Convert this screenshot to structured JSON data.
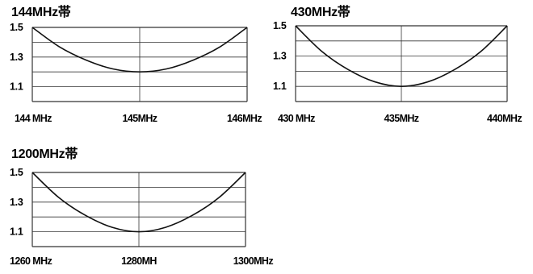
{
  "chart_data": [
    {
      "type": "line",
      "title": "144MHz帯",
      "xlabel": "",
      "ylabel": "",
      "x": [
        144,
        144.25,
        144.5,
        144.75,
        145,
        145.25,
        145.5,
        145.75,
        146
      ],
      "x_tick_labels": [
        "144 MHz",
        "145MHz",
        "146MHz"
      ],
      "y": [
        1.5,
        1.37,
        1.28,
        1.22,
        1.2,
        1.22,
        1.28,
        1.37,
        1.5
      ],
      "y_ticks": [
        "1.5",
        "1.3",
        "1.1"
      ],
      "ylim": [
        1.0,
        1.5
      ],
      "xlim": [
        144,
        146
      ],
      "grid": true,
      "color": "#111111"
    },
    {
      "type": "line",
      "title": "430MHz帯",
      "xlabel": "",
      "ylabel": "",
      "x": [
        430,
        431.25,
        432.5,
        433.75,
        435,
        436.25,
        437.5,
        438.75,
        440
      ],
      "x_tick_labels": [
        "430 MHz",
        "435MHz",
        "440MHz"
      ],
      "y": [
        1.5,
        1.33,
        1.21,
        1.13,
        1.1,
        1.13,
        1.21,
        1.33,
        1.5
      ],
      "y_ticks": [
        "1.5",
        "1.3",
        "1.1"
      ],
      "ylim": [
        1.0,
        1.5
      ],
      "xlim": [
        430,
        440
      ],
      "grid": true,
      "color": "#111111"
    },
    {
      "type": "line",
      "title": "1200MHz帯",
      "xlabel": "",
      "ylabel": "",
      "x": [
        1260,
        1265,
        1270,
        1275,
        1280,
        1285,
        1290,
        1295,
        1300
      ],
      "x_tick_labels": [
        "1260 MHz",
        "1280MH",
        "1300MHz"
      ],
      "y": [
        1.5,
        1.33,
        1.21,
        1.13,
        1.1,
        1.13,
        1.21,
        1.33,
        1.5
      ],
      "y_ticks": [
        "1.5",
        "1.3",
        "1.1"
      ],
      "ylim": [
        1.0,
        1.5
      ],
      "xlim": [
        1260,
        1300
      ],
      "grid": true,
      "color": "#111111"
    }
  ]
}
